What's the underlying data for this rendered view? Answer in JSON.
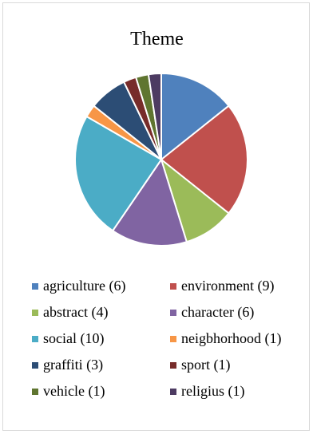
{
  "chart_data": {
    "type": "pie",
    "title": "Theme",
    "legend_position": "bottom",
    "slices": [
      {
        "label": "agriculture (6)",
        "value": 6,
        "color": "#4F81BD"
      },
      {
        "label": "environment (9)",
        "value": 9,
        "color": "#C0504D"
      },
      {
        "label": "abstract (4)",
        "value": 4,
        "color": "#9BBB59"
      },
      {
        "label": "character (6)",
        "value": 6,
        "color": "#8064A2"
      },
      {
        "label": "social (10)",
        "value": 10,
        "color": "#4BACC6"
      },
      {
        "label": "neigbhorhood (1)",
        "value": 1,
        "color": "#F79646"
      },
      {
        "label": "graffiti (3)",
        "value": 3,
        "color": "#2C4D75"
      },
      {
        "label": "sport (1)",
        "value": 1,
        "color": "#772C2A"
      },
      {
        "label": "vehicle (1)",
        "value": 1,
        "color": "#5F7530"
      },
      {
        "label": "religius (1)",
        "value": 1,
        "color": "#4D3B62"
      }
    ]
  }
}
